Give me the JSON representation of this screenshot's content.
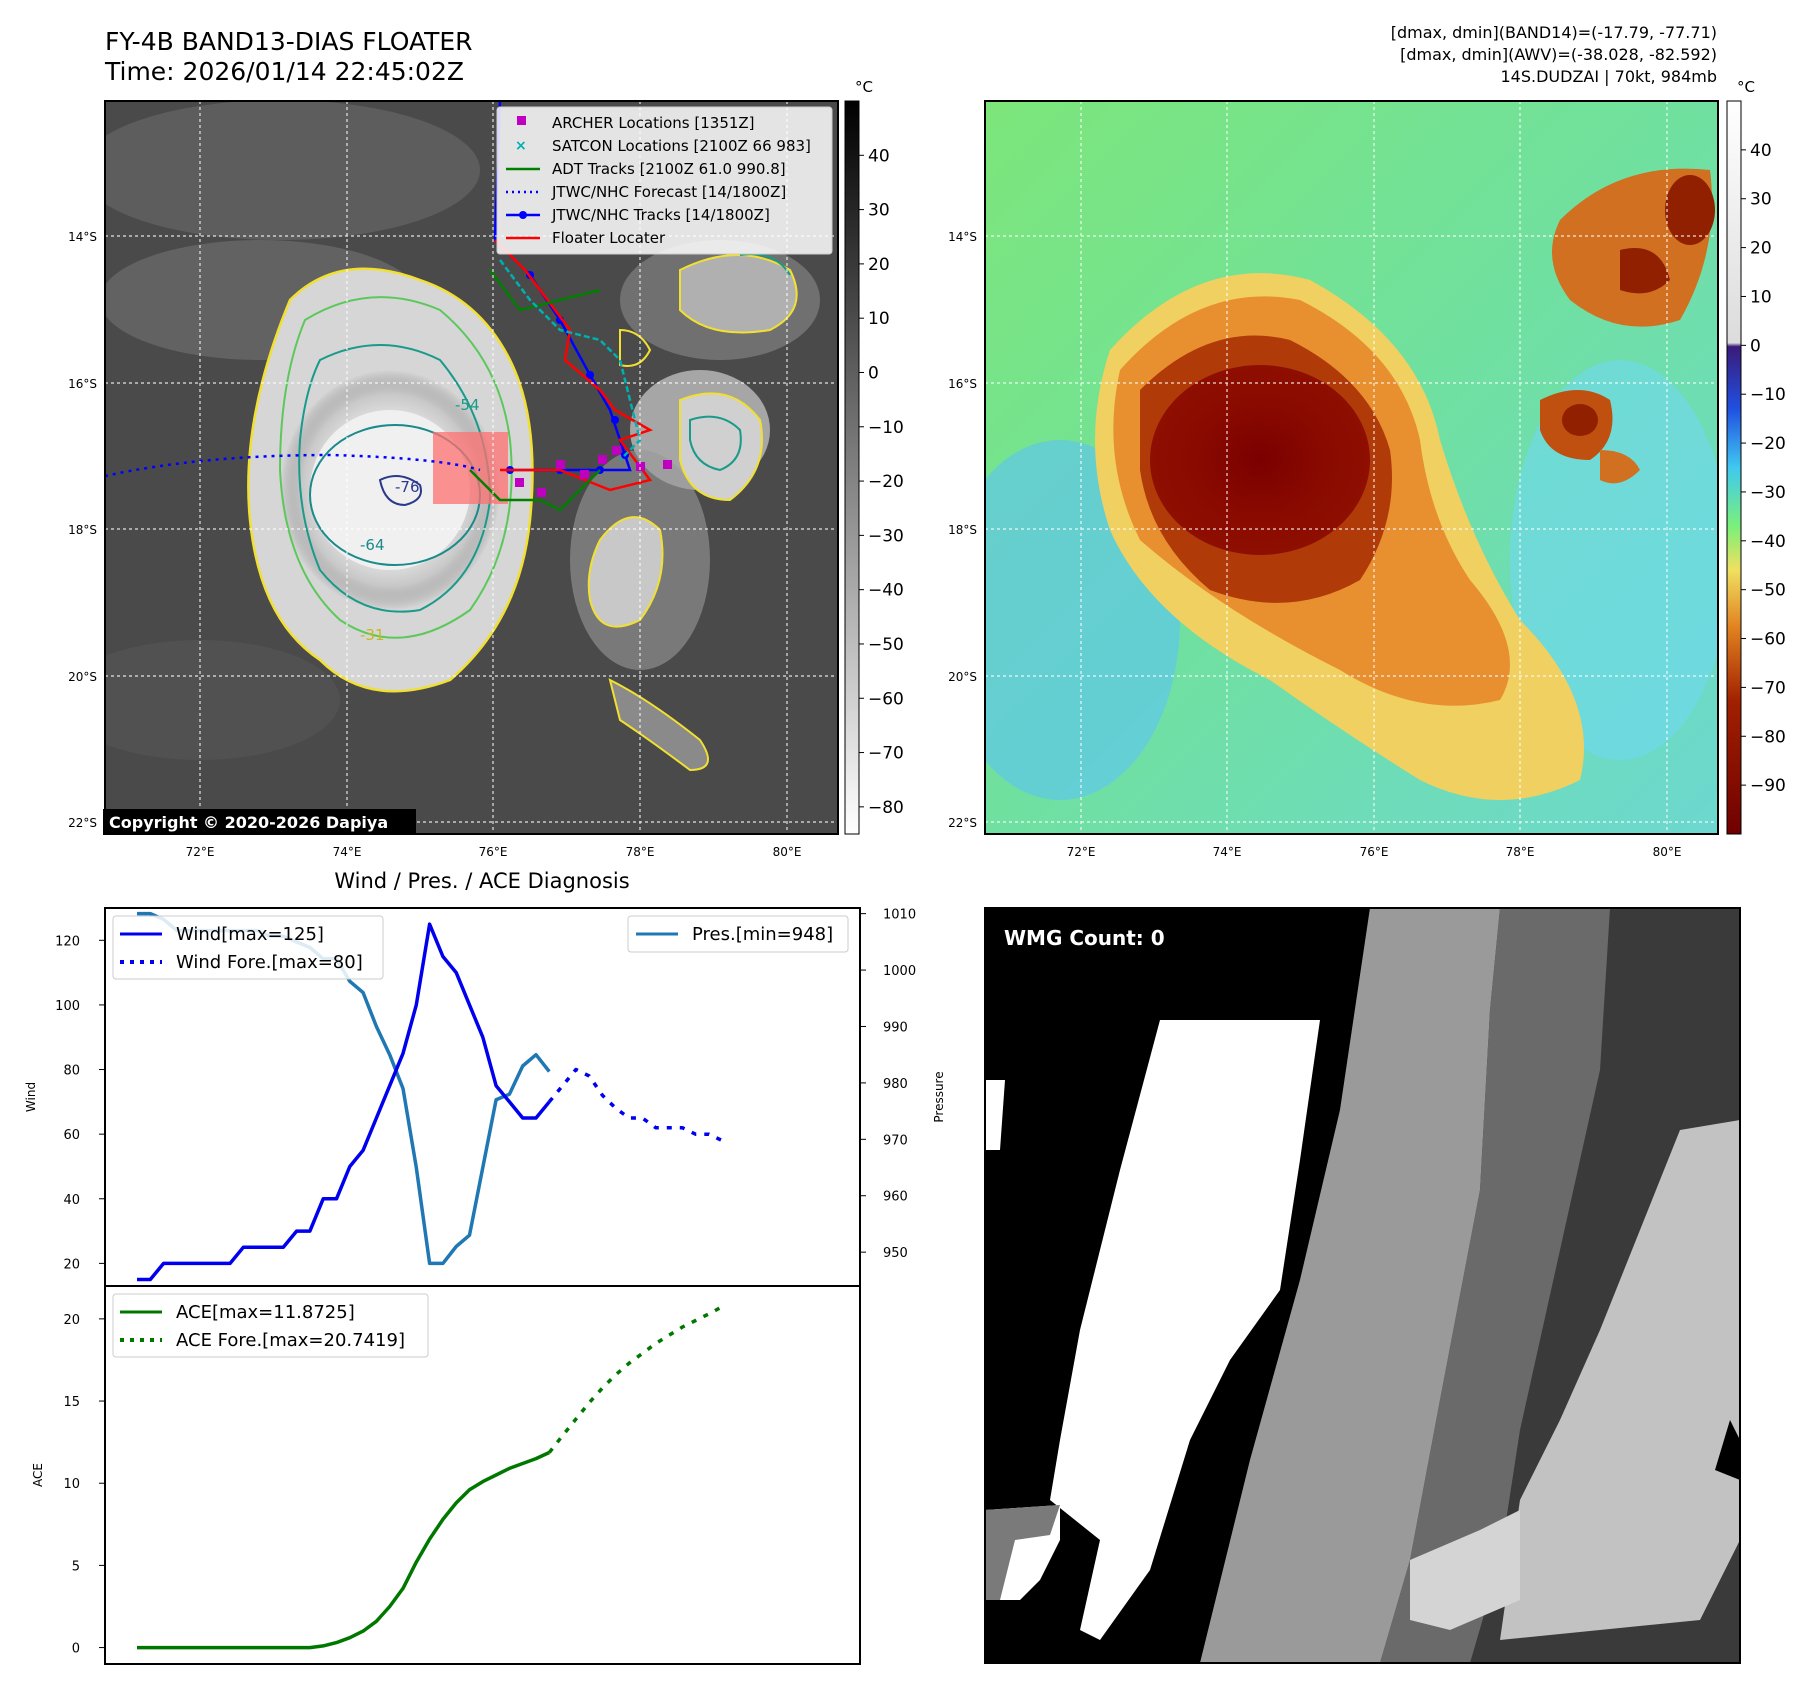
{
  "header": {
    "title_line1": "FY-4B BAND13-DIAS FLOATER",
    "title_line2": "Time: 2026/01/14 22:45:02Z",
    "info_line1": "[dmax, dmin](BAND14)=(-17.79, -77.71)",
    "info_line2": "[dmax, dmin](AWV)=(-38.028, -82.592)",
    "info_line3": "14S.DUDZAI | 70kt, 984mb"
  },
  "copyright": "Copyright © 2020-2026 Dapiya",
  "colors": {
    "wind": "#0000ee",
    "pressure": "#1f77b4",
    "ace": "#007800",
    "archer": "#c000c0",
    "satcon": "#00b0b0",
    "adt": "#008000",
    "jtwc_forecast": "#0000ff",
    "jtwc_track": "#0000ff",
    "floater": "#ff0000",
    "contour_yellow": "#f2e030",
    "contour_green": "#5cc85c",
    "contour_teal": "#1a9a8a"
  },
  "map": {
    "lon_ticks": [
      "72°E",
      "74°E",
      "76°E",
      "78°E",
      "80°E"
    ],
    "lat_ticks": [
      "14°S",
      "16°S",
      "18°S",
      "20°S",
      "22°S"
    ],
    "contour_labels": [
      "-31",
      "-54",
      "-64",
      "-76"
    ]
  },
  "ir_colorbar": {
    "unit": "°C",
    "ticks": [
      "40",
      "30",
      "20",
      "10",
      "0",
      "−10",
      "−20",
      "−30",
      "−40",
      "−50",
      "−60",
      "−70",
      "−80"
    ]
  },
  "awv_colorbar": {
    "unit": "°C",
    "ticks": [
      "40",
      "30",
      "20",
      "10",
      "0",
      "−10",
      "−20",
      "−30",
      "−40",
      "−50",
      "−60",
      "−70",
      "−80",
      "−90"
    ]
  },
  "legend": [
    {
      "label": "ARCHER Locations [1351Z]",
      "icon": "square-marker-icon"
    },
    {
      "label": "SATCON Locations [2100Z 66 983]",
      "icon": "x-marker-icon"
    },
    {
      "label": "ADT Tracks [2100Z 61.0 990.8]",
      "icon": "line-icon"
    },
    {
      "label": "JTWC/NHC Forecast [14/1800Z]",
      "icon": "dotted-line-icon"
    },
    {
      "label": "JTWC/NHC Tracks [14/1800Z]",
      "icon": "line-dot-icon"
    },
    {
      "label": "Floater Locater",
      "icon": "line-icon"
    }
  ],
  "wmg": {
    "label": "WMG Count: 0"
  },
  "chart_data": [
    {
      "type": "line",
      "title": "Wind / Pres. / ACE Diagnosis",
      "ylabel": "Wind",
      "ylabel_right": "Pressure",
      "ylim": [
        13,
        130
      ],
      "ylim_right": [
        944,
        1011
      ],
      "y_ticks": [
        "20",
        "40",
        "60",
        "80",
        "100",
        "120"
      ],
      "y_ticks_right": [
        "950",
        "960",
        "970",
        "980",
        "990",
        "1000",
        "1010"
      ],
      "series": [
        {
          "name": "Wind[max=125]",
          "values": [
            15,
            15,
            20,
            20,
            20,
            20,
            20,
            20,
            25,
            25,
            25,
            25,
            30,
            30,
            40,
            40,
            50,
            55,
            65,
            75,
            85,
            100,
            125,
            115,
            110,
            100,
            90,
            75,
            70,
            65,
            65,
            70
          ]
        },
        {
          "name": "Wind Fore.[max=80]",
          "start_index": 31,
          "values": [
            70,
            75,
            80,
            78,
            72,
            68,
            65,
            65,
            62,
            62,
            62,
            60,
            60,
            58
          ]
        },
        {
          "name": "Pres.[min=948]",
          "axis": "right",
          "values": [
            1010,
            1010,
            1009,
            1007,
            1007,
            1007,
            1007,
            1007,
            1007,
            1007,
            1006,
            1006,
            1005,
            1004,
            1002,
            1002,
            998,
            996,
            990,
            985,
            979,
            965,
            948,
            948,
            951,
            953,
            965,
            977,
            978,
            983,
            985,
            982
          ]
        }
      ]
    },
    {
      "type": "line",
      "ylabel": "ACE",
      "ylim": [
        -1,
        22
      ],
      "y_ticks": [
        "0",
        "5",
        "10",
        "15",
        "20"
      ],
      "series": [
        {
          "name": "ACE[max=11.8725]",
          "values": [
            0,
            0,
            0,
            0,
            0,
            0,
            0,
            0,
            0,
            0,
            0,
            0,
            0,
            0,
            0.1,
            0.3,
            0.6,
            1.0,
            1.6,
            2.5,
            3.6,
            5.2,
            6.6,
            7.8,
            8.8,
            9.6,
            10.1,
            10.5,
            10.9,
            11.2,
            11.5,
            11.87
          ]
        },
        {
          "name": "ACE Fore.[max=20.7419]",
          "start_index": 31,
          "values": [
            11.87,
            12.9,
            13.9,
            14.9,
            15.8,
            16.6,
            17.3,
            17.9,
            18.5,
            19.0,
            19.5,
            19.9,
            20.3,
            20.74
          ]
        }
      ]
    }
  ]
}
